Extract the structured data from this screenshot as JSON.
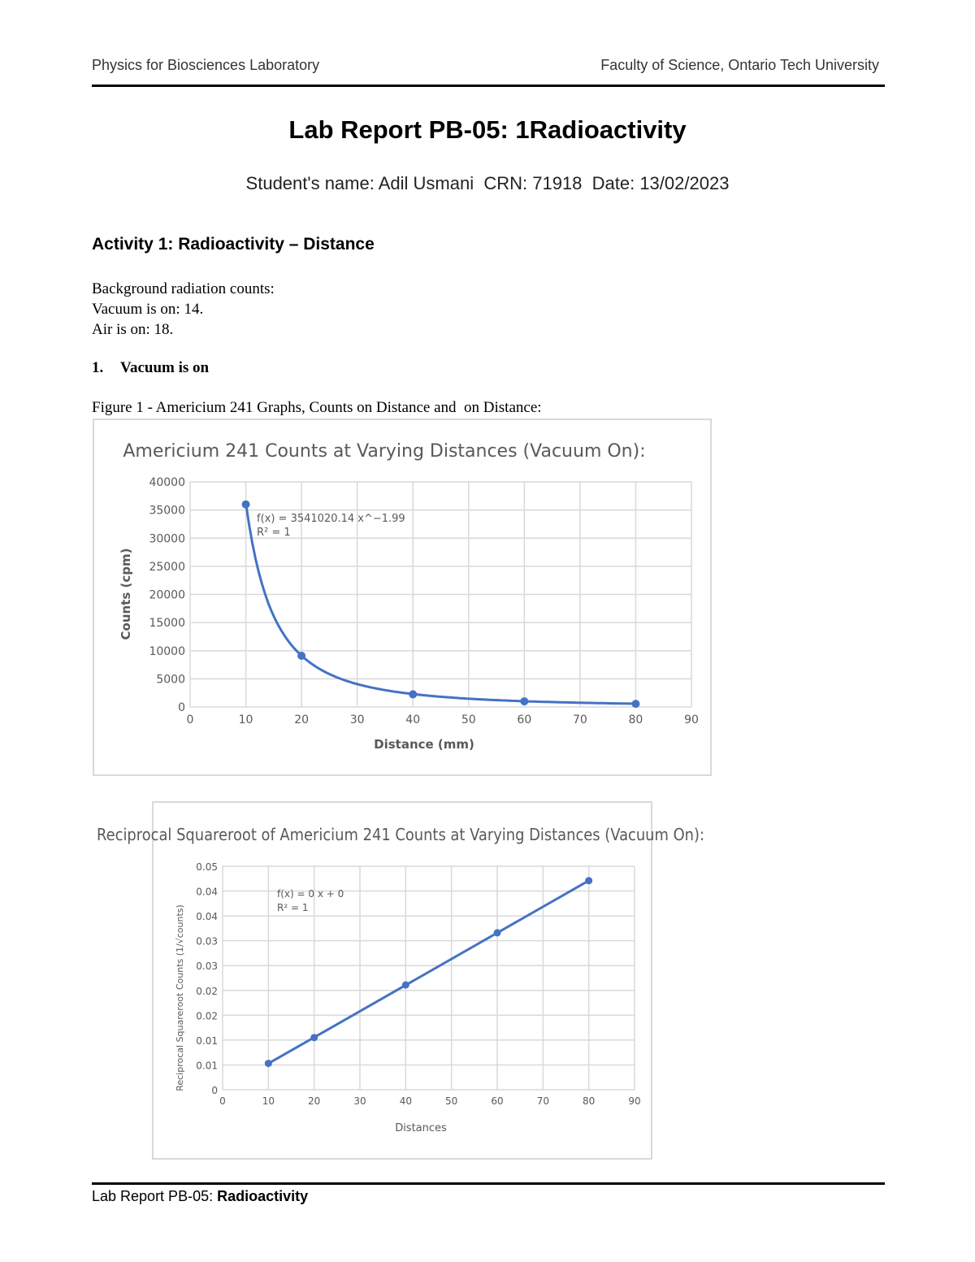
{
  "header": {
    "left": "Physics for Biosciences Laboratory",
    "right": "Faculty of Science, Ontario Tech University"
  },
  "title": "Lab Report PB-05: 1Radioactivity",
  "student_line": "Student's name: Adil Usmani  CRN: 71918  Date: 13/02/2023",
  "activity_heading": "Activity 1: Radioactivity – Distance",
  "background": {
    "label": "Background radiation counts:",
    "vacuum": "Vacuum is on: 14.",
    "air": "Air is on: 18."
  },
  "section": {
    "number": "1.",
    "label": "Vacuum is on"
  },
  "figure_caption": "Figure 1 - Americium 241 Graphs, Counts on Distance and  on Distance:",
  "chart_data": [
    {
      "type": "scatter",
      "title": "Americium 241 Counts at Varying Distances (Vacuum On):",
      "xlabel": "Distance (mm)",
      "ylabel": "Counts (cpm)",
      "xlim": [
        0,
        90
      ],
      "ylim": [
        0,
        40000
      ],
      "xticks": [
        "0",
        "10",
        "20",
        "30",
        "40",
        "50",
        "60",
        "70",
        "80",
        "90"
      ],
      "yticks": [
        "0",
        "5000",
        "10000",
        "15000",
        "20000",
        "25000",
        "30000",
        "35000",
        "40000"
      ],
      "grid": true,
      "x": [
        10,
        20,
        40,
        60,
        80
      ],
      "y": [
        36000,
        9100,
        2250,
        1000,
        560
      ],
      "trendline": {
        "type": "power",
        "coef": 3541020.14,
        "exp": -1.99
      },
      "equation": "f(x) = 3541020.14 x^−1.99",
      "r2": "R² = 1",
      "color": "#4472c4"
    },
    {
      "type": "scatter",
      "title": "Reciprocal Squareroot of Americium 241 Counts at Varying Distances (Vacuum On):",
      "xlabel": "Distances",
      "ylabel": "Reciprocal Squareroot Counts (1/√counts)",
      "xlim": [
        0,
        90
      ],
      "ylim": [
        0,
        0.045
      ],
      "xticks": [
        "0",
        "10",
        "20",
        "30",
        "40",
        "50",
        "60",
        "70",
        "80",
        "90"
      ],
      "yticks": [
        "0",
        "0.01",
        "0.01",
        "0.02",
        "0.02",
        "0.03",
        "0.03",
        "0.04",
        "0.04",
        "0.05"
      ],
      "grid": true,
      "x": [
        10,
        20,
        40,
        60,
        80
      ],
      "y": [
        0.0053,
        0.0105,
        0.0211,
        0.0316,
        0.0421
      ],
      "trendline": {
        "type": "linear"
      },
      "equation": "f(x) = 0 x + 0",
      "r2": "R² = 1",
      "color": "#4472c4"
    }
  ],
  "footer": {
    "prefix": "Lab Report PB-05: ",
    "bold": "Radioactivity"
  }
}
